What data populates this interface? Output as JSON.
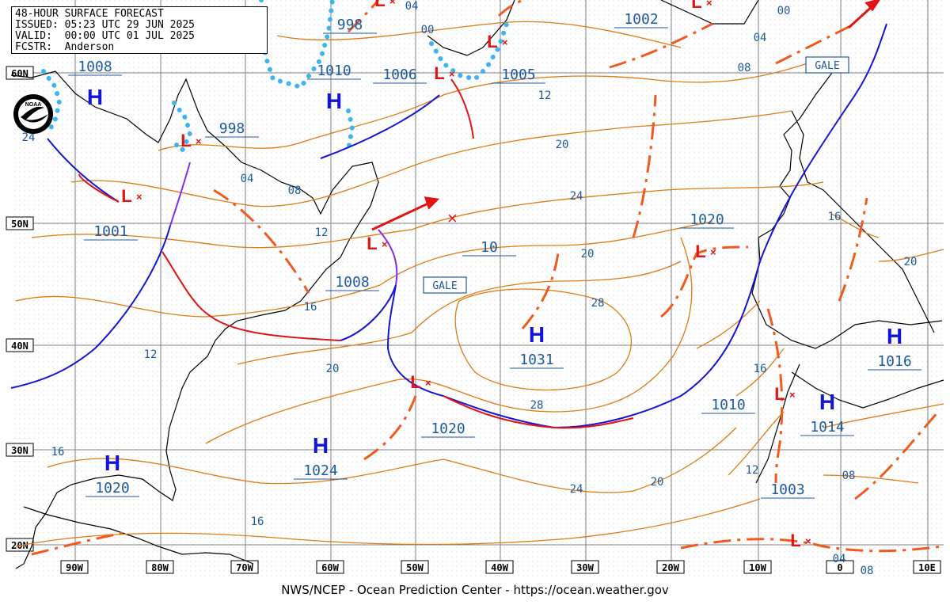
{
  "header": {
    "title": "48-HOUR SURFACE FORECAST",
    "issued": "ISSUED: 05:23 UTC 29 JUN 2025",
    "valid": "VALID:  00:00 UTC 01 JUL 2025",
    "forecaster": "FCSTR:  Anderson"
  },
  "footer": "NWS/NCEP - Ocean Prediction Center - https://ocean.weather.gov",
  "logo": {
    "name": "noaa-logo",
    "text": "NOAA"
  },
  "lon_labels": [
    "90W",
    "80W",
    "70W",
    "60W",
    "50W",
    "40W",
    "30W",
    "20W",
    "10W",
    "0",
    "10E"
  ],
  "lat_labels": [
    "60N",
    "50N",
    "40N",
    "30N",
    "20N"
  ],
  "pressure_centers": [
    {
      "type": "H",
      "value": "1008"
    },
    {
      "type": "H",
      "value": "1031"
    },
    {
      "type": "H",
      "value": "1024"
    },
    {
      "type": "H",
      "value": "1020"
    },
    {
      "type": "H",
      "value": "1016"
    },
    {
      "type": "H",
      "value": "1014"
    },
    {
      "type": "H",
      "value": "1010"
    },
    {
      "type": "L",
      "value": "1001"
    },
    {
      "type": "L",
      "value": "1008"
    },
    {
      "type": "L",
      "value": "1006"
    },
    {
      "type": "L",
      "value": "1005"
    },
    {
      "type": "L",
      "value": "1002"
    },
    {
      "type": "L",
      "value": "1020"
    },
    {
      "type": "L",
      "value": "1010"
    },
    {
      "type": "L",
      "value": "1020"
    },
    {
      "type": "L",
      "value": "1003"
    },
    {
      "type": "L",
      "value": "998"
    },
    {
      "type": "L",
      "value": "998"
    },
    {
      "type": "L",
      "value": "10"
    }
  ],
  "isobar_labels": [
    "04",
    "08",
    "12",
    "16",
    "20",
    "24",
    "28",
    "16",
    "12",
    "20",
    "28",
    "24",
    "20",
    "16",
    "12",
    "08",
    "04",
    "08",
    "04",
    "00",
    "00",
    "04",
    "08",
    "12",
    "16",
    "20",
    "16",
    "20",
    "24"
  ],
  "warnings": [
    "GALE",
    "GALE"
  ],
  "colors": {
    "isobar": "#e07a10",
    "trough": "#f05a1e",
    "cold_front": "#1414d2",
    "warm_front": "#e01414",
    "occluded_front": "#8a2be2",
    "ice_edge": "#3cb4f0",
    "land": "#000000",
    "grid": "#808080",
    "high": "#1414d2",
    "low": "#e01414",
    "value_text": "#1e5aa0"
  }
}
